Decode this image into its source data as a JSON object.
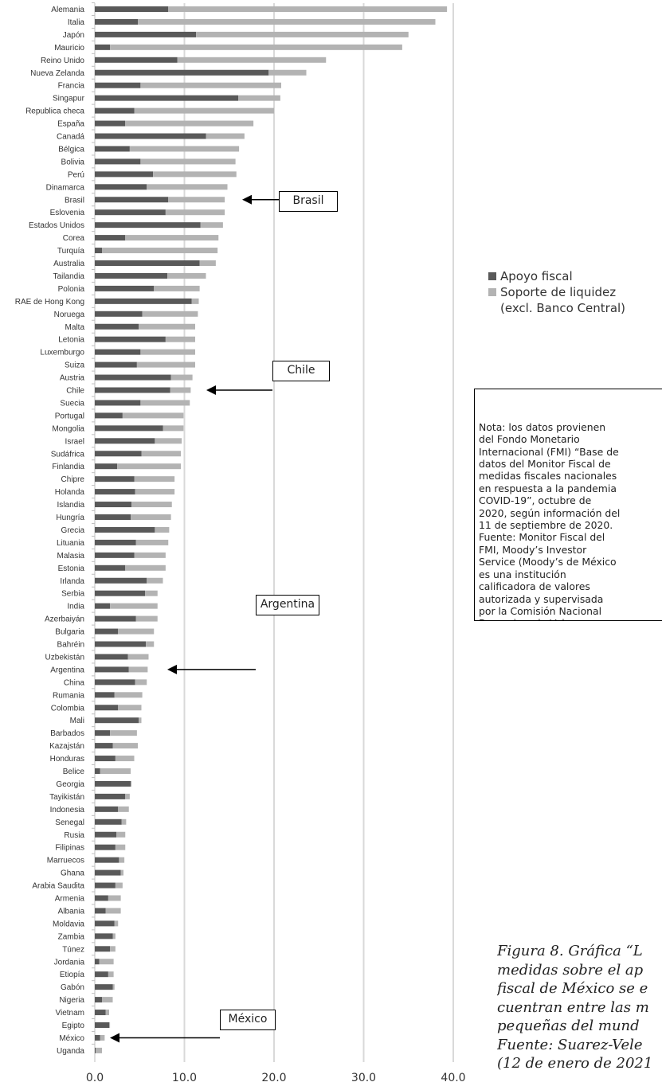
{
  "chart_data": {
    "type": "bar",
    "stacked": true,
    "orientation": "horizontal",
    "categories": [
      "Alemania",
      "Italia",
      "Japón",
      "Mauricio",
      "Reino Unido",
      "Nueva Zelanda",
      "Francia",
      "Singapur",
      "Republica checa",
      "España",
      "Canadá",
      "Bélgica",
      "Bolivia",
      "Perú",
      "Dinamarca",
      "Brasil",
      "Eslovenia",
      "Estados Unidos",
      "Corea",
      "Turquía",
      "Australia",
      "Tailandia",
      "Polonia",
      "RAE de Hong Kong",
      "Noruega",
      "Malta",
      "Letonia",
      "Luxemburgo",
      "Suiza",
      "Austria",
      "Chile",
      "Suecia",
      "Portugal",
      "Mongolia",
      "Israel",
      "Sudáfrica",
      "Finlandia",
      "Chipre",
      "Holanda",
      "Islandia",
      "Hungría",
      "Grecia",
      "Lituania",
      "Malasia",
      "Estonia",
      "Irlanda",
      "Serbia",
      "India",
      "Azerbaiyán",
      "Bulgaria",
      "Bahréin",
      "Uzbekistán",
      "Argentina",
      "China",
      "Rumania",
      "Colombia",
      "Mali",
      "Barbados",
      "Kazajstán",
      "Honduras",
      "Belice",
      "Georgia",
      "Tayikistán",
      "Indonesia",
      "Senegal",
      "Rusia",
      "Filipinas",
      "Marruecos",
      "Ghana",
      "Arabia Saudita",
      "Armenia",
      "Albania",
      "Moldavia",
      "Zambia",
      "Túnez",
      "Jordania",
      "Etiopía",
      "Gabón",
      "Nigeria",
      "Vietnam",
      "Egipto",
      "México",
      "Uganda"
    ],
    "series": [
      {
        "name": "Apoyo fiscal",
        "color": "#595959",
        "values": [
          8.2,
          4.8,
          11.3,
          1.7,
          9.2,
          19.4,
          5.1,
          16.0,
          4.4,
          3.4,
          12.4,
          3.9,
          5.1,
          6.5,
          5.8,
          8.2,
          7.9,
          11.8,
          3.4,
          0.8,
          11.7,
          8.1,
          6.6,
          10.8,
          5.3,
          4.9,
          7.9,
          5.1,
          4.7,
          8.5,
          8.4,
          5.1,
          3.1,
          7.6,
          6.7,
          5.2,
          2.5,
          4.4,
          4.5,
          4.1,
          4.0,
          6.7,
          4.6,
          4.4,
          3.4,
          5.8,
          5.6,
          1.7,
          4.6,
          2.6,
          5.7,
          3.7,
          3.8,
          4.5,
          2.2,
          2.6,
          4.9,
          1.7,
          2.0,
          2.3,
          0.6,
          4.0,
          3.4,
          2.6,
          3.0,
          2.4,
          2.3,
          2.7,
          2.9,
          2.3,
          1.5,
          1.2,
          2.2,
          2.0,
          1.7,
          0.5,
          1.5,
          2.0,
          0.8,
          1.2,
          1.6,
          0.6,
          0.1
        ]
      },
      {
        "name": "Soporte de liquidez (excl. Banco Central)",
        "color": "#b3b3b3",
        "values": [
          31.1,
          33.2,
          23.7,
          32.6,
          16.6,
          4.2,
          15.7,
          4.7,
          15.6,
          14.3,
          4.3,
          12.2,
          10.6,
          9.3,
          9.0,
          6.3,
          6.6,
          2.5,
          10.4,
          12.9,
          1.8,
          4.3,
          5.1,
          0.8,
          6.2,
          6.3,
          3.3,
          6.1,
          6.5,
          2.4,
          2.3,
          5.5,
          6.8,
          2.3,
          3.0,
          4.4,
          7.1,
          4.5,
          4.4,
          4.5,
          4.5,
          1.6,
          3.6,
          3.5,
          4.5,
          1.8,
          1.4,
          5.3,
          2.4,
          4.0,
          0.9,
          2.3,
          2.1,
          1.3,
          3.1,
          2.6,
          0.3,
          3.0,
          2.8,
          2.1,
          3.4,
          0.1,
          0.5,
          1.2,
          0.5,
          1.0,
          1.1,
          0.6,
          0.3,
          0.8,
          1.4,
          1.7,
          0.4,
          0.3,
          0.6,
          1.6,
          0.6,
          0.2,
          1.2,
          0.4,
          0.1,
          0.5,
          0.7
        ]
      }
    ],
    "xlim": [
      0,
      40
    ],
    "xticks": [
      "0.0",
      "10.0",
      "20.0",
      "30.0",
      "40.0"
    ],
    "grid": "vertical",
    "legend_position": "right",
    "annotations": [
      {
        "label": "Brasil",
        "target": "Brasil"
      },
      {
        "label": "Chile",
        "target": "Chile"
      },
      {
        "label": "Argentina",
        "target": "Argentina"
      },
      {
        "label": "México",
        "target": "México"
      }
    ]
  },
  "legend": {
    "fiscal": "Apoyo fiscal",
    "liquidity_line1": "Soporte de liquidez",
    "liquidity_line2": "(excl. Banco Central)"
  },
  "note": {
    "text": "Nota: los datos provienen\ndel Fondo Monetario\nInternacional (FMI) “Base de\ndatos del Monitor Fiscal de\nmedidas fiscales nacionales\nen respuesta a la pandemia\nCOVID-19”, octubre de\n2020, según información del\n11 de septiembre de 2020.\nFuente: Monitor Fiscal del\nFMI, Moody’s Investor\nService (Moody’s de México\nes una institución\ncalificadora de valores\nautorizada y supervisada\npor la Comisión Nacional\nBancaria y de Valores.\nCuenta con equipo de\nanalistas en los sectores\ncorporativo, instituciones\nfinancieras, finanzas\npúblicas, aseguradoras,\nsociedades de inversión,\nfinanciamiento de proyectos\ny finanzas estructuradas)."
  },
  "caption": {
    "text": "Figura 8. Gráfica “L\nmedidas sobre el ap\nfiscal de México se e\ncuentran entre las m\npequeñas del mund\nFuente: Suarez-Vele\n(12 de enero de 2021"
  }
}
